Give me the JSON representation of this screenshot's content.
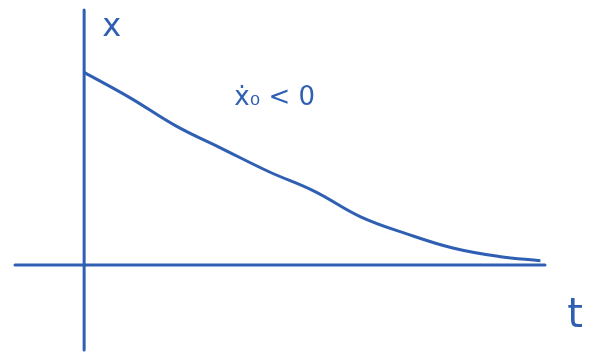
{
  "chart_data": {
    "type": "line",
    "x_label": "t",
    "y_label": "x",
    "annotation": "ẋ₀ < 0",
    "x": [
      0,
      1,
      2,
      3,
      4,
      5,
      6,
      7,
      8,
      9,
      9.9
    ],
    "values": [
      6.8,
      5.9,
      4.9,
      4.1,
      3.3,
      2.6,
      1.7,
      1.1,
      0.6,
      0.3,
      0.15
    ],
    "color": "#2f5fb3",
    "xlim": [
      -1.5,
      10
    ],
    "ylim": [
      -3,
      9
    ],
    "grid": false,
    "tick_labels": false
  }
}
